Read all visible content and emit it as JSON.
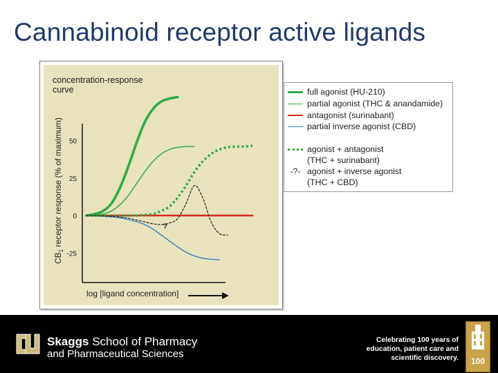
{
  "slide": {
    "title": "Cannabinoid receptor active ligands"
  },
  "chart_data": {
    "type": "line",
    "title": "concentration-response curve",
    "title_lines": [
      "concentration-response",
      "curve"
    ],
    "xlabel": "log [ligand concentration]",
    "ylabel": "CB1 receptor response (% of maximum)",
    "ylabel_main": "CB",
    "ylabel_sub": "1",
    "ylabel_rest": " receptor response (% of maximum)",
    "y_ticks": [
      "50",
      "25",
      "0",
      "-25"
    ],
    "y_tick_values": [
      50,
      25,
      0,
      -25
    ],
    "xlim": [
      0,
      10
    ],
    "ylim": [
      -35,
      85
    ],
    "x": [
      0,
      0.5,
      1,
      1.5,
      2,
      2.5,
      3,
      3.5,
      4,
      4.5,
      5,
      5.5,
      6,
      6.5,
      7,
      7.5,
      8,
      8.5,
      9,
      9.5,
      10
    ],
    "series": [
      {
        "name": "full agonist (HU-210)",
        "color": "#2faa45",
        "style": "thick",
        "x": [
          0,
          0.5,
          1,
          1.5,
          2,
          2.5,
          3,
          3.5,
          4,
          4.5,
          5,
          5.5
        ],
        "values": [
          0,
          1,
          3,
          8,
          18,
          32,
          48,
          62,
          71,
          76,
          78,
          79
        ]
      },
      {
        "name": "partial agonist (THC & anandamide)",
        "color": "#2faa45",
        "style": "thin",
        "x": [
          0,
          0.5,
          1,
          1.5,
          2,
          2.5,
          3,
          3.5,
          4,
          4.5,
          5,
          5.5,
          6,
          6.5
        ],
        "values": [
          0,
          0.5,
          1,
          3,
          7,
          13,
          21,
          29,
          36,
          41,
          44,
          45.5,
          46,
          46
        ]
      },
      {
        "name": "antagonist (surinabant)",
        "color": "#d9261c",
        "style": "solid",
        "x": [
          0,
          10
        ],
        "values": [
          0,
          0
        ]
      },
      {
        "name": "partial inverse agonist (CBD)",
        "color": "#3a7fc1",
        "style": "thin",
        "x": [
          0,
          1,
          2,
          3,
          3.5,
          4,
          4.5,
          5,
          5.5,
          6,
          6.5,
          7,
          7.5,
          8
        ],
        "values": [
          0,
          -0.5,
          -1.5,
          -4,
          -6,
          -9,
          -13,
          -17,
          -21,
          -24.5,
          -27,
          -28.5,
          -29.2,
          -29.5
        ]
      },
      {
        "name": "agonist + antagonist (THC + surinabant)",
        "color": "#2faa45",
        "style": "dotted",
        "x": [
          0,
          1,
          2,
          3,
          3.5,
          4,
          4.5,
          5,
          5.5,
          6,
          6.5,
          7,
          7.5,
          8,
          8.5,
          9,
          9.5,
          10
        ],
        "values": [
          0,
          0,
          0,
          0,
          0.5,
          1,
          3,
          6,
          12,
          20,
          29,
          36,
          41,
          44,
          45.5,
          46,
          46,
          46.5
        ]
      },
      {
        "name": "agonist + inverse agonist (THC + CBD)",
        "color": "#222222",
        "style": "dashed",
        "x": [
          0,
          2,
          3,
          4,
          4.5,
          5,
          5.5,
          6,
          6.5,
          7,
          7.5,
          8,
          8.5
        ],
        "values": [
          0,
          -1,
          -3,
          -5.5,
          -6,
          -5,
          -2,
          8,
          20,
          12,
          -4,
          -12,
          -13
        ]
      }
    ],
    "annotations": [
      "?"
    ],
    "legend_position": "right, outside plot",
    "grid": false
  },
  "legend": {
    "items": [
      {
        "label": "full agonist (HU-210)",
        "color": "#2faa45",
        "style": "thick"
      },
      {
        "label": "partial agonist (THC & anandamide)",
        "color": "#2faa45",
        "style": "thin"
      },
      {
        "label": "antagonist (surinabant)",
        "color": "#d9261c",
        "style": "solid"
      },
      {
        "label": "partial inverse agonist (CBD)",
        "color": "#3a7fc1",
        "style": "thin"
      }
    ],
    "combo": [
      {
        "label_line1": "agonist + antagonist",
        "label_line2": "(THC + surinabant)",
        "color": "#2faa45",
        "style": "dotted",
        "marker": ""
      },
      {
        "label_line1": "agonist + inverse agonist",
        "label_line2": "(THC + CBD)",
        "color": "#222222",
        "style": "dashed",
        "marker": "-?-"
      }
    ]
  },
  "footer": {
    "school_bold": "Skaggs",
    "school_rest": " School of Pharmacy",
    "school_line2": "and Pharmaceutical Sciences",
    "celebrate_lines": [
      "Celebrating 100 years of",
      "education, patient care and",
      "scientific discovery."
    ],
    "anniversary": "100"
  },
  "colors": {
    "title": "#1f3b68",
    "figure_bg": "#e8e3bd",
    "footer_bg": "#000000",
    "badge": "#caa24a"
  }
}
